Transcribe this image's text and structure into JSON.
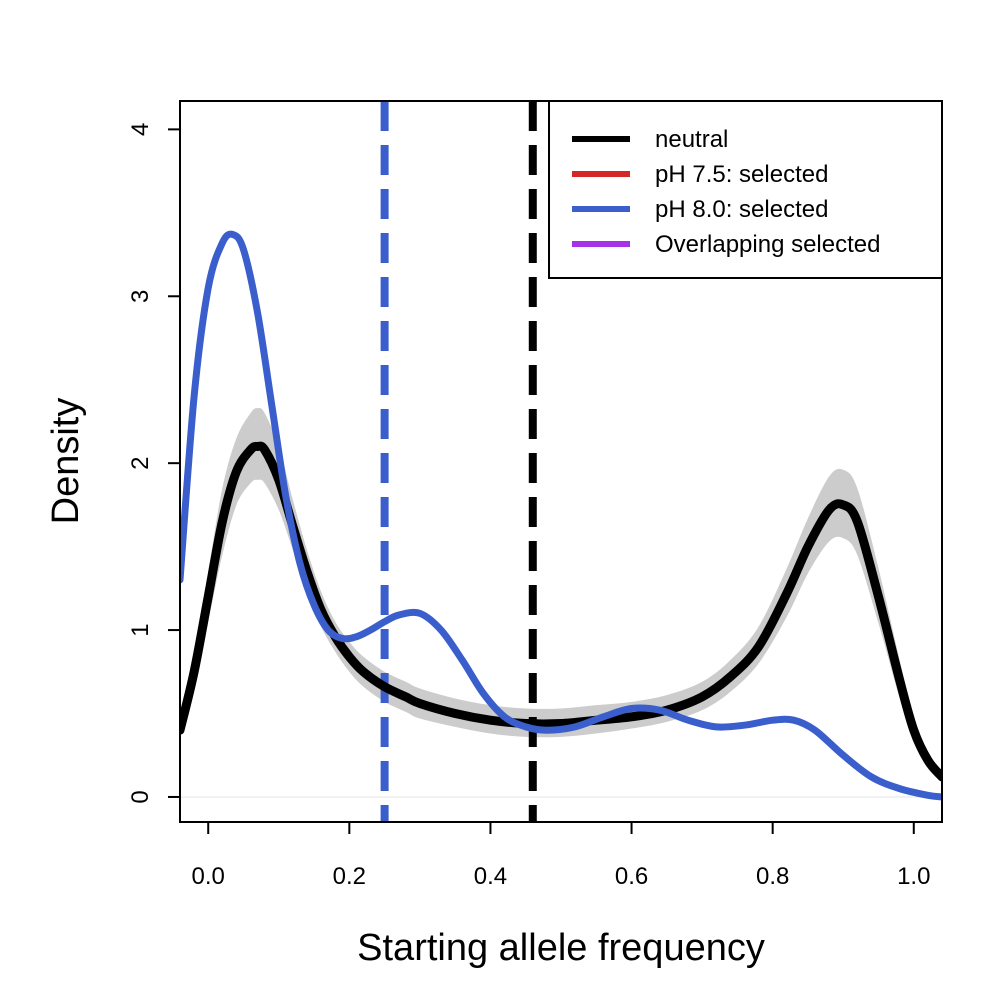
{
  "chart_data": {
    "type": "line",
    "title": "",
    "xlabel": "Starting allele frequency",
    "ylabel": "Density",
    "xlim": [
      -0.04,
      1.04
    ],
    "ylim": [
      -0.15,
      4.17
    ],
    "x_ticks": [
      0.0,
      0.2,
      0.4,
      0.6,
      0.8,
      1.0
    ],
    "x_tick_labels": [
      "0.0",
      "0.2",
      "0.4",
      "0.6",
      "0.8",
      "1.0"
    ],
    "y_ticks": [
      0,
      1,
      2,
      3,
      4
    ],
    "y_tick_labels": [
      "0",
      "1",
      "2",
      "3",
      "4"
    ],
    "grid": false,
    "legend_position": "top-right",
    "legend": [
      {
        "label": "neutral",
        "color": "#000000"
      },
      {
        "label": "pH 7.5: selected",
        "color": "#d62728"
      },
      {
        "label": "pH 8.0: selected",
        "color": "#3a5fcd"
      },
      {
        "label": "Overlapping selected",
        "color": "#a632e8"
      }
    ],
    "series": [
      {
        "legend_index": 0,
        "color": "#000000",
        "x": [
          -0.04,
          -0.02,
          0.0,
          0.02,
          0.04,
          0.06,
          0.07,
          0.08,
          0.1,
          0.12,
          0.14,
          0.16,
          0.18,
          0.2,
          0.22,
          0.25,
          0.28,
          0.3,
          0.35,
          0.4,
          0.45,
          0.5,
          0.55,
          0.6,
          0.65,
          0.7,
          0.74,
          0.78,
          0.82,
          0.85,
          0.88,
          0.9,
          0.92,
          0.95,
          0.98,
          1.0,
          1.02,
          1.04
        ],
        "y": [
          0.4,
          0.75,
          1.2,
          1.65,
          1.95,
          2.08,
          2.1,
          2.08,
          1.9,
          1.62,
          1.35,
          1.12,
          0.96,
          0.84,
          0.75,
          0.66,
          0.6,
          0.56,
          0.5,
          0.46,
          0.44,
          0.44,
          0.46,
          0.48,
          0.52,
          0.6,
          0.72,
          0.9,
          1.22,
          1.5,
          1.72,
          1.75,
          1.65,
          1.2,
          0.7,
          0.4,
          0.22,
          0.12
        ]
      },
      {
        "legend_index": 2,
        "color": "#3a5fcd",
        "x": [
          -0.04,
          -0.02,
          0.0,
          0.02,
          0.035,
          0.05,
          0.07,
          0.09,
          0.11,
          0.13,
          0.15,
          0.17,
          0.19,
          0.21,
          0.23,
          0.25,
          0.27,
          0.3,
          0.33,
          0.36,
          0.39,
          0.42,
          0.45,
          0.48,
          0.52,
          0.56,
          0.6,
          0.64,
          0.68,
          0.72,
          0.76,
          0.8,
          0.83,
          0.86,
          0.9,
          0.94,
          0.98,
          1.02,
          1.04
        ],
        "y": [
          1.3,
          2.4,
          3.05,
          3.32,
          3.37,
          3.28,
          2.9,
          2.35,
          1.8,
          1.4,
          1.15,
          1.0,
          0.95,
          0.96,
          1.0,
          1.05,
          1.09,
          1.1,
          1.0,
          0.82,
          0.62,
          0.48,
          0.42,
          0.4,
          0.42,
          0.48,
          0.53,
          0.52,
          0.46,
          0.42,
          0.43,
          0.46,
          0.46,
          0.4,
          0.25,
          0.12,
          0.05,
          0.01,
          0.0
        ]
      }
    ],
    "confidence_band": {
      "color": "#cccccc",
      "x": [
        -0.04,
        -0.02,
        0.0,
        0.02,
        0.04,
        0.06,
        0.07,
        0.08,
        0.1,
        0.12,
        0.14,
        0.16,
        0.18,
        0.2,
        0.22,
        0.25,
        0.28,
        0.3,
        0.35,
        0.4,
        0.45,
        0.5,
        0.55,
        0.6,
        0.65,
        0.7,
        0.74,
        0.78,
        0.82,
        0.85,
        0.88,
        0.9,
        0.92,
        0.95,
        0.98,
        1.0,
        1.02,
        1.04
      ],
      "lower": [
        0.35,
        0.65,
        1.05,
        1.45,
        1.75,
        1.88,
        1.9,
        1.88,
        1.72,
        1.48,
        1.23,
        1.02,
        0.87,
        0.75,
        0.66,
        0.57,
        0.51,
        0.47,
        0.42,
        0.38,
        0.36,
        0.36,
        0.38,
        0.41,
        0.45,
        0.52,
        0.63,
        0.8,
        1.08,
        1.34,
        1.53,
        1.55,
        1.45,
        1.04,
        0.59,
        0.33,
        0.17,
        0.09
      ],
      "upper": [
        0.45,
        0.85,
        1.35,
        1.85,
        2.15,
        2.3,
        2.33,
        2.3,
        2.1,
        1.78,
        1.48,
        1.23,
        1.05,
        0.93,
        0.84,
        0.75,
        0.69,
        0.65,
        0.59,
        0.55,
        0.53,
        0.53,
        0.55,
        0.57,
        0.61,
        0.69,
        0.82,
        1.02,
        1.37,
        1.67,
        1.92,
        1.96,
        1.85,
        1.37,
        0.82,
        0.48,
        0.27,
        0.15
      ]
    },
    "vlines": [
      {
        "x": 0.25,
        "color": "#3a5fcd",
        "style": "dashed"
      },
      {
        "x": 0.46,
        "color": "#000000",
        "style": "dashed"
      }
    ]
  }
}
